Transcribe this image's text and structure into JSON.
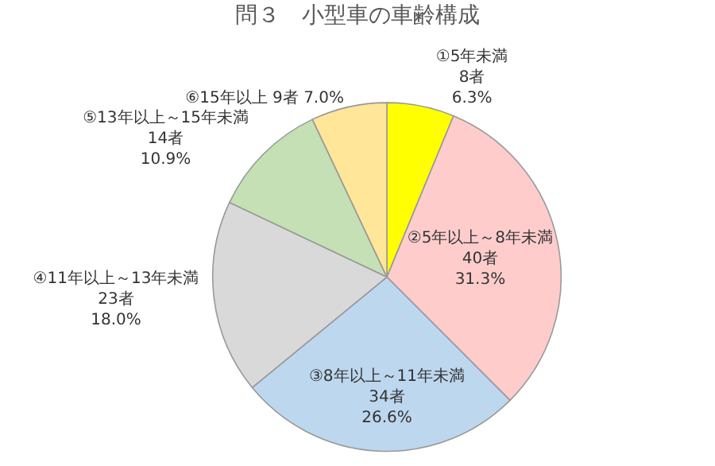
{
  "chart_data": {
    "type": "pie",
    "title": "問３　小型車の車齢構成",
    "categories": [
      "①5年未満",
      "②5年以上～8年未満",
      "③8年以上～11年未満",
      "④11年以上～13年未満",
      "⑤13年以上～15年未満",
      "⑥15年以上"
    ],
    "values": [
      8,
      40,
      34,
      23,
      14,
      9
    ],
    "value_labels": [
      "8者\n6.3%",
      "40者\n31.3%",
      "34者\n26.6%",
      "23者\n18.0%",
      "14者\n10.9%",
      "9者 7.0%"
    ],
    "colors": [
      "#ffff00",
      "#ffcccc",
      "#bdd7ee",
      "#d9d9d9",
      "#c5e0b4",
      "#ffe699"
    ],
    "legend": false
  }
}
